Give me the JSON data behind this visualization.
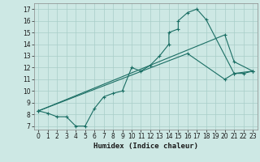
{
  "title": "",
  "xlabel": "Humidex (Indice chaleur)",
  "ylabel": "",
  "bg_color": "#cde8e4",
  "grid_color": "#a8cdc8",
  "line_color": "#1a6e64",
  "xlim": [
    -0.5,
    23.5
  ],
  "ylim": [
    6.7,
    17.5
  ],
  "xticks": [
    0,
    1,
    2,
    3,
    4,
    5,
    6,
    7,
    8,
    9,
    10,
    11,
    12,
    13,
    14,
    15,
    16,
    17,
    18,
    19,
    20,
    21,
    22,
    23
  ],
  "yticks": [
    7,
    8,
    9,
    10,
    11,
    12,
    13,
    14,
    15,
    16,
    17
  ],
  "line1_x": [
    0,
    1,
    2,
    3,
    4,
    5,
    6,
    7,
    8,
    9,
    10,
    11,
    12,
    13,
    14,
    14,
    15,
    15,
    16,
    17,
    18,
    21,
    22,
    23
  ],
  "line1_y": [
    8.3,
    8.1,
    7.8,
    7.8,
    7.0,
    7.0,
    8.5,
    9.5,
    9.8,
    10.0,
    12.0,
    11.7,
    12.2,
    13.0,
    14.0,
    15.0,
    15.3,
    16.0,
    16.7,
    17.0,
    16.1,
    11.5,
    11.5,
    11.7
  ],
  "line2_x": [
    0,
    20,
    21,
    23
  ],
  "line2_y": [
    8.3,
    14.8,
    12.5,
    11.7
  ],
  "line3_x": [
    0,
    16,
    20,
    21,
    23
  ],
  "line3_y": [
    8.3,
    13.2,
    11.0,
    11.5,
    11.7
  ],
  "marker": "+",
  "markersize": 3,
  "linewidth": 0.8,
  "tick_fontsize": 5.5,
  "xlabel_fontsize": 6.5
}
